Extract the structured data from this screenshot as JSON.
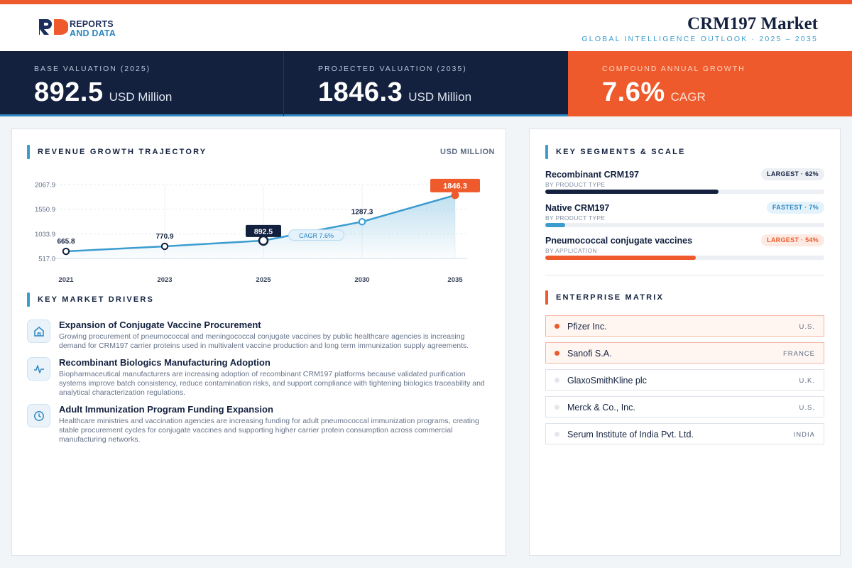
{
  "brand": {
    "logo_line1": "REPORTS",
    "logo_line2": "AND DATA"
  },
  "header": {
    "title": "CRM197 Market",
    "subtitle": "GLOBAL INTELLIGENCE OUTLOOK  ·  2025 – 2035"
  },
  "kpis": [
    {
      "label": "BASE VALUATION (2025)",
      "value": "892.5",
      "unit": "USD Million"
    },
    {
      "label": "PROJECTED VALUATION (2035)",
      "value": "1846.3",
      "unit": "USD Million"
    },
    {
      "label": "COMPOUND ANNUAL GROWTH",
      "value": "7.6%",
      "unit": "CAGR"
    }
  ],
  "trajectory": {
    "title": "REVENUE GROWTH TRAJECTORY",
    "unit_label": "USD MILLION"
  },
  "chart_data": {
    "type": "line",
    "categories": [
      "2021",
      "2023",
      "2025",
      "2030",
      "2035"
    ],
    "values": [
      665.8,
      770.9,
      892.5,
      1287.3,
      1846.3
    ],
    "data_labels": [
      "665.8",
      "770.9",
      "892.5",
      "1287.3",
      "1846.3"
    ],
    "y_ticks": [
      517.0,
      1033.9,
      1550.9,
      2067.9
    ],
    "y_tick_labels": [
      "517.0",
      "1033.9",
      "1550.9",
      "2067.9"
    ],
    "ylim": [
      517.0,
      2067.9
    ],
    "annotation": "CAGR 7.6%",
    "grid": true,
    "area_fill": true,
    "colors": {
      "line": "#3a9ccf",
      "highlight": "#13213f",
      "end": "#ee5a2c"
    }
  },
  "drivers": {
    "title": "KEY MARKET DRIVERS",
    "items": [
      {
        "icon": "hospital-icon",
        "title": "Expansion of Conjugate Vaccine Procurement",
        "desc": "Growing procurement of pneumococcal and meningococcal conjugate vaccines by public healthcare agencies is increasing demand for CRM197 carrier proteins used in multivalent vaccine production and long term immunization supply agreements."
      },
      {
        "icon": "activity-icon",
        "title": "Recombinant Biologics Manufacturing Adoption",
        "desc": "Biopharmaceutical manufacturers are increasing adoption of recombinant CRM197 platforms because validated purification systems improve batch consistency, reduce contamination risks, and support compliance with tightening biologics traceability and analytical characterization regulations."
      },
      {
        "icon": "clock-icon",
        "title": "Adult Immunization Program Funding Expansion",
        "desc": "Healthcare ministries and vaccination agencies are increasing funding for adult pneumococcal immunization programs, creating stable procurement cycles for conjugate vaccines and supporting higher carrier protein consumption across commercial manufacturing networks."
      }
    ]
  },
  "segments": {
    "title": "KEY SEGMENTS & SCALE",
    "items": [
      {
        "name": "Recombinant CRM197",
        "category": "BY PRODUCT TYPE",
        "badge": "LARGEST · 62%",
        "share": 0.62,
        "color": "#13213f",
        "badge_bg": "#eceff4",
        "badge_fg": "#13213f"
      },
      {
        "name": "Native CRM197",
        "category": "BY PRODUCT TYPE",
        "badge": "FASTEST · 7%",
        "share": 0.07,
        "color": "#3a9ccf",
        "badge_bg": "#e3f2fb",
        "badge_fg": "#2e86c1"
      },
      {
        "name": "Pneumococcal conjugate vaccines",
        "category": "BY APPLICATION",
        "badge": "LARGEST · 54%",
        "share": 0.54,
        "color": "#ee5a2c",
        "badge_bg": "#fdeae2",
        "badge_fg": "#ee5a2c"
      }
    ]
  },
  "enterprise": {
    "title": "ENTERPRISE MATRIX",
    "items": [
      {
        "name": "Pfizer Inc.",
        "country": "U.S.",
        "highlight": true
      },
      {
        "name": "Sanofi S.A.",
        "country": "FRANCE",
        "highlight": true
      },
      {
        "name": "GlaxoSmithKline plc",
        "country": "U.K.",
        "highlight": false
      },
      {
        "name": "Merck & Co., Inc.",
        "country": "U.S.",
        "highlight": false
      },
      {
        "name": "Serum Institute of India Pvt. Ltd.",
        "country": "INDIA",
        "highlight": false
      }
    ]
  }
}
